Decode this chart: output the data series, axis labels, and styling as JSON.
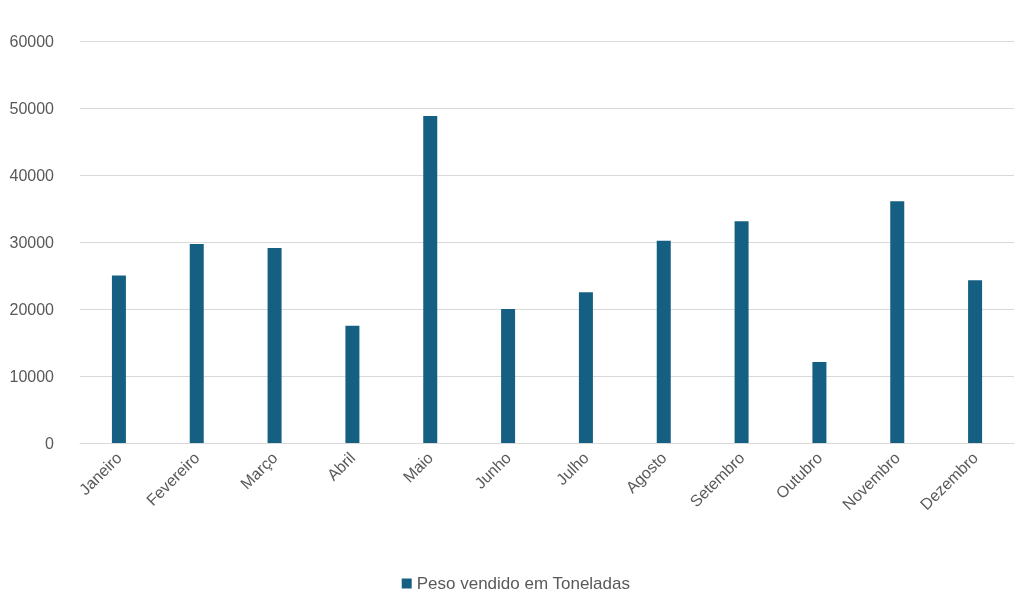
{
  "chart_data": {
    "type": "bar",
    "categories": [
      "Janeiro",
      "Fevereiro",
      "Março",
      "Abril",
      "Maio",
      "Junho",
      "Julho",
      "Agosto",
      "Setembro",
      "Outubro",
      "Novembro",
      "Dezembro"
    ],
    "series": [
      {
        "name": "Peso vendido em Toneladas",
        "color": "#156082",
        "values": [
          25000,
          29700,
          29100,
          17500,
          48800,
          20000,
          22500,
          30200,
          33100,
          12100,
          36100,
          24300
        ]
      }
    ],
    "ylim": [
      0,
      60000
    ],
    "yticks": [
      0,
      10000,
      20000,
      30000,
      40000,
      50000,
      60000
    ],
    "grid": "y",
    "legend": "bottom"
  }
}
